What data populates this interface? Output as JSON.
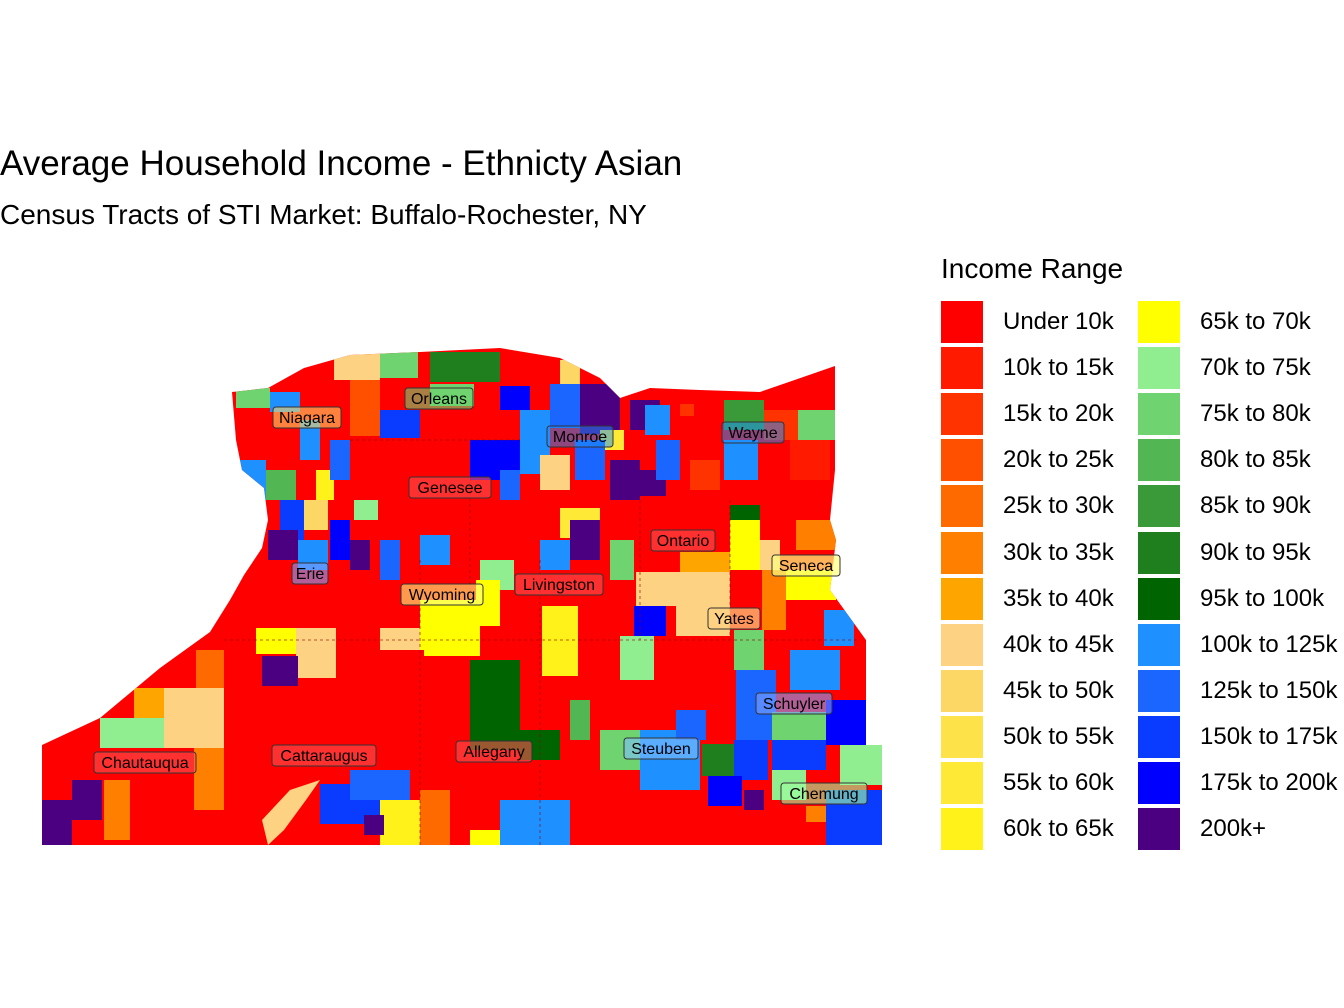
{
  "title": "Average Household Income - Ethnicty Asian",
  "subtitle": "Census Tracts of STI Market: Buffalo-Rochester, NY",
  "legend": {
    "title": "Income Range",
    "items": [
      {
        "label": "Under 10k",
        "color": "#ff0000"
      },
      {
        "label": "10k to 15k",
        "color": "#ff1a00"
      },
      {
        "label": "15k to 20k",
        "color": "#ff3300"
      },
      {
        "label": "20k to 25k",
        "color": "#ff5000"
      },
      {
        "label": "25k to 30k",
        "color": "#ff6a00"
      },
      {
        "label": "30k to 35k",
        "color": "#ff8000"
      },
      {
        "label": "35k to 40k",
        "color": "#ffa500"
      },
      {
        "label": "40k to 45k",
        "color": "#fdd282"
      },
      {
        "label": "45k to 50k",
        "color": "#fdd766"
      },
      {
        "label": "50k to 55k",
        "color": "#fde24a"
      },
      {
        "label": "55k to 60k",
        "color": "#feea36"
      },
      {
        "label": "60k to 65k",
        "color": "#fff21a"
      },
      {
        "label": "65k to 70k",
        "color": "#ffff00"
      },
      {
        "label": "70k to 75k",
        "color": "#90ee90"
      },
      {
        "label": "75k to 80k",
        "color": "#6fd36f"
      },
      {
        "label": "80k to 85k",
        "color": "#52b752"
      },
      {
        "label": "85k to 90k",
        "color": "#3a9a3a"
      },
      {
        "label": "90k to 95k",
        "color": "#1f7f1f"
      },
      {
        "label": "95k to 100k",
        "color": "#006400"
      },
      {
        "label": "100k to 125k",
        "color": "#1e90ff"
      },
      {
        "label": "125k to 150k",
        "color": "#1a66ff"
      },
      {
        "label": "150k to 175k",
        "color": "#0a3cff"
      },
      {
        "label": "175k to 200k",
        "color": "#0000ff"
      },
      {
        "label": "200k+",
        "color": "#4b0082"
      }
    ]
  },
  "counties": [
    "Niagara",
    "Orleans",
    "Monroe",
    "Wayne",
    "Genesee",
    "Ontario",
    "Seneca",
    "Erie",
    "Wyoming",
    "Livingston",
    "Yates",
    "Schuyler",
    "Chautauqua",
    "Cattaraugus",
    "Allegany",
    "Steuben",
    "Chemung"
  ]
}
